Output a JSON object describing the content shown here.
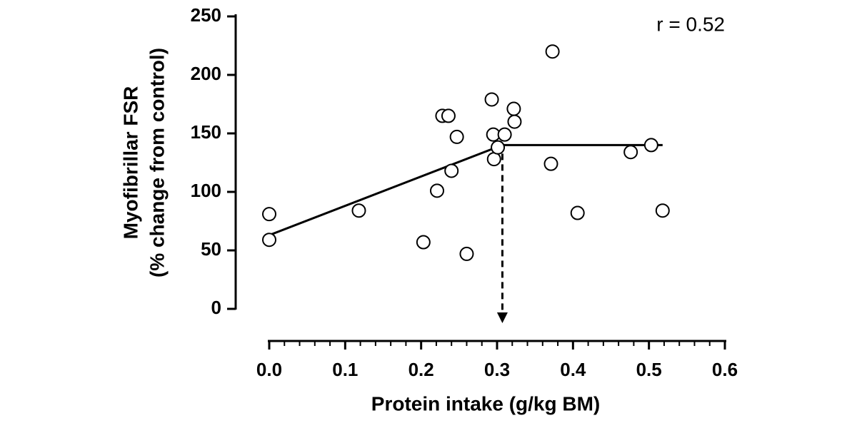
{
  "chart_data": {
    "type": "scatter",
    "y_label_lines": [
      "Myofibrillar FSR",
      "(% change from control)"
    ],
    "x_label": "Protein intake (g/kg BM)",
    "annotation": "r = 0.52",
    "x": [
      0.0,
      0.0,
      0.118,
      0.203,
      0.221,
      0.228,
      0.236,
      0.24,
      0.247,
      0.26,
      0.293,
      0.295,
      0.296,
      0.301,
      0.31,
      0.322,
      0.323,
      0.371,
      0.373,
      0.406,
      0.476,
      0.503,
      0.518
    ],
    "values": [
      81,
      59,
      84,
      57,
      101,
      165,
      165,
      118,
      147,
      47,
      179,
      149,
      128,
      138,
      149,
      171,
      160,
      124,
      220,
      82,
      134,
      140,
      84
    ],
    "marker_color": "#000000",
    "fit_line": {
      "x": [
        0,
        0.307,
        0.518
      ],
      "y": [
        63,
        140,
        140
      ],
      "color": "#000000"
    },
    "xlim": [
      0,
      0.6
    ],
    "ylim": [
      0,
      250
    ],
    "xticks": [
      {
        "value": 0,
        "label": "0.0"
      },
      0.1,
      0.2,
      0.3,
      0.4,
      0.5,
      0.6
    ],
    "xminorticks": [
      0.02,
      0.04,
      0.06,
      0.08,
      0.12,
      0.14,
      0.16,
      0.18,
      0.22,
      0.24,
      0.26,
      0.28,
      0.32,
      0.34,
      0.36,
      0.38,
      0.42,
      0.44,
      0.46,
      0.48,
      0.52,
      0.54,
      0.56,
      0.58
    ],
    "yticks": [
      0,
      50,
      100,
      150,
      200,
      250
    ]
  }
}
